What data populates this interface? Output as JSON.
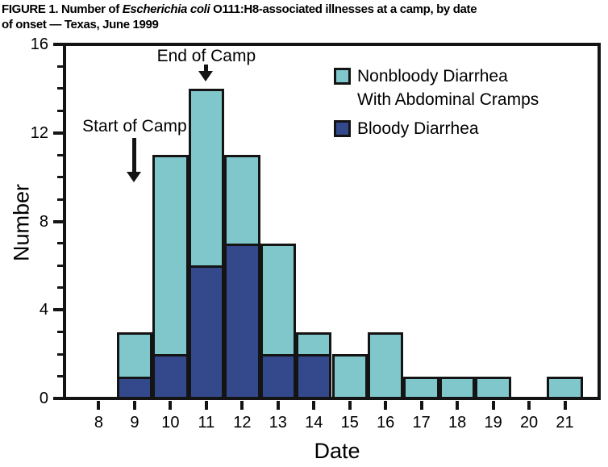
{
  "title": {
    "part1": "FIGURE 1. Number of ",
    "italic": "Escherichia coli",
    "part2": " O111:H8-associated illnesses at a camp, by date",
    "line2": "of onset — Texas, June 1999"
  },
  "chart_data": {
    "type": "bar",
    "stacked": true,
    "xlabel": "Date",
    "ylabel": "Number",
    "x": [
      8,
      9,
      10,
      11,
      12,
      13,
      14,
      15,
      16,
      17,
      18,
      19,
      20,
      21
    ],
    "series": [
      {
        "name": "Nonbloody Diarrhea With Abdominal Cramps",
        "stack_position": "top",
        "color": "#7FC7CB",
        "values": [
          0,
          2,
          9,
          8,
          4,
          5,
          1,
          2,
          3,
          1,
          1,
          1,
          0,
          1
        ]
      },
      {
        "name": "Bloody Diarrhea",
        "stack_position": "bottom",
        "color": "#34498C",
        "values": [
          0,
          1,
          2,
          6,
          7,
          2,
          2,
          0,
          0,
          0,
          0,
          0,
          0,
          0
        ]
      }
    ],
    "totals": [
      0,
      3,
      11,
      14,
      11,
      7,
      3,
      2,
      3,
      1,
      1,
      1,
      0,
      1
    ],
    "xlim": [
      7,
      22
    ],
    "ylim": [
      0,
      16
    ],
    "yticks_major": [
      0,
      4,
      8,
      12,
      16
    ],
    "ytick_minor_step": 1,
    "grid": false,
    "legend_position": "upper-right-inside",
    "legend": [
      {
        "line1": "Nonbloody Diarrhea",
        "line2": "With Abdominal Cramps"
      },
      {
        "line1": "Bloody Diarrhea"
      }
    ],
    "annotations": [
      {
        "label": "Start of Camp",
        "x": 9,
        "text_y": 12.72,
        "arrow_from_y": 11.78,
        "arrow_to_y": 9.78
      },
      {
        "label": "End of Camp",
        "x": 11,
        "text_y": 15.88,
        "arrow_from_y": 15.08,
        "arrow_to_y": 14.32
      }
    ],
    "line_color": "#141414"
  }
}
